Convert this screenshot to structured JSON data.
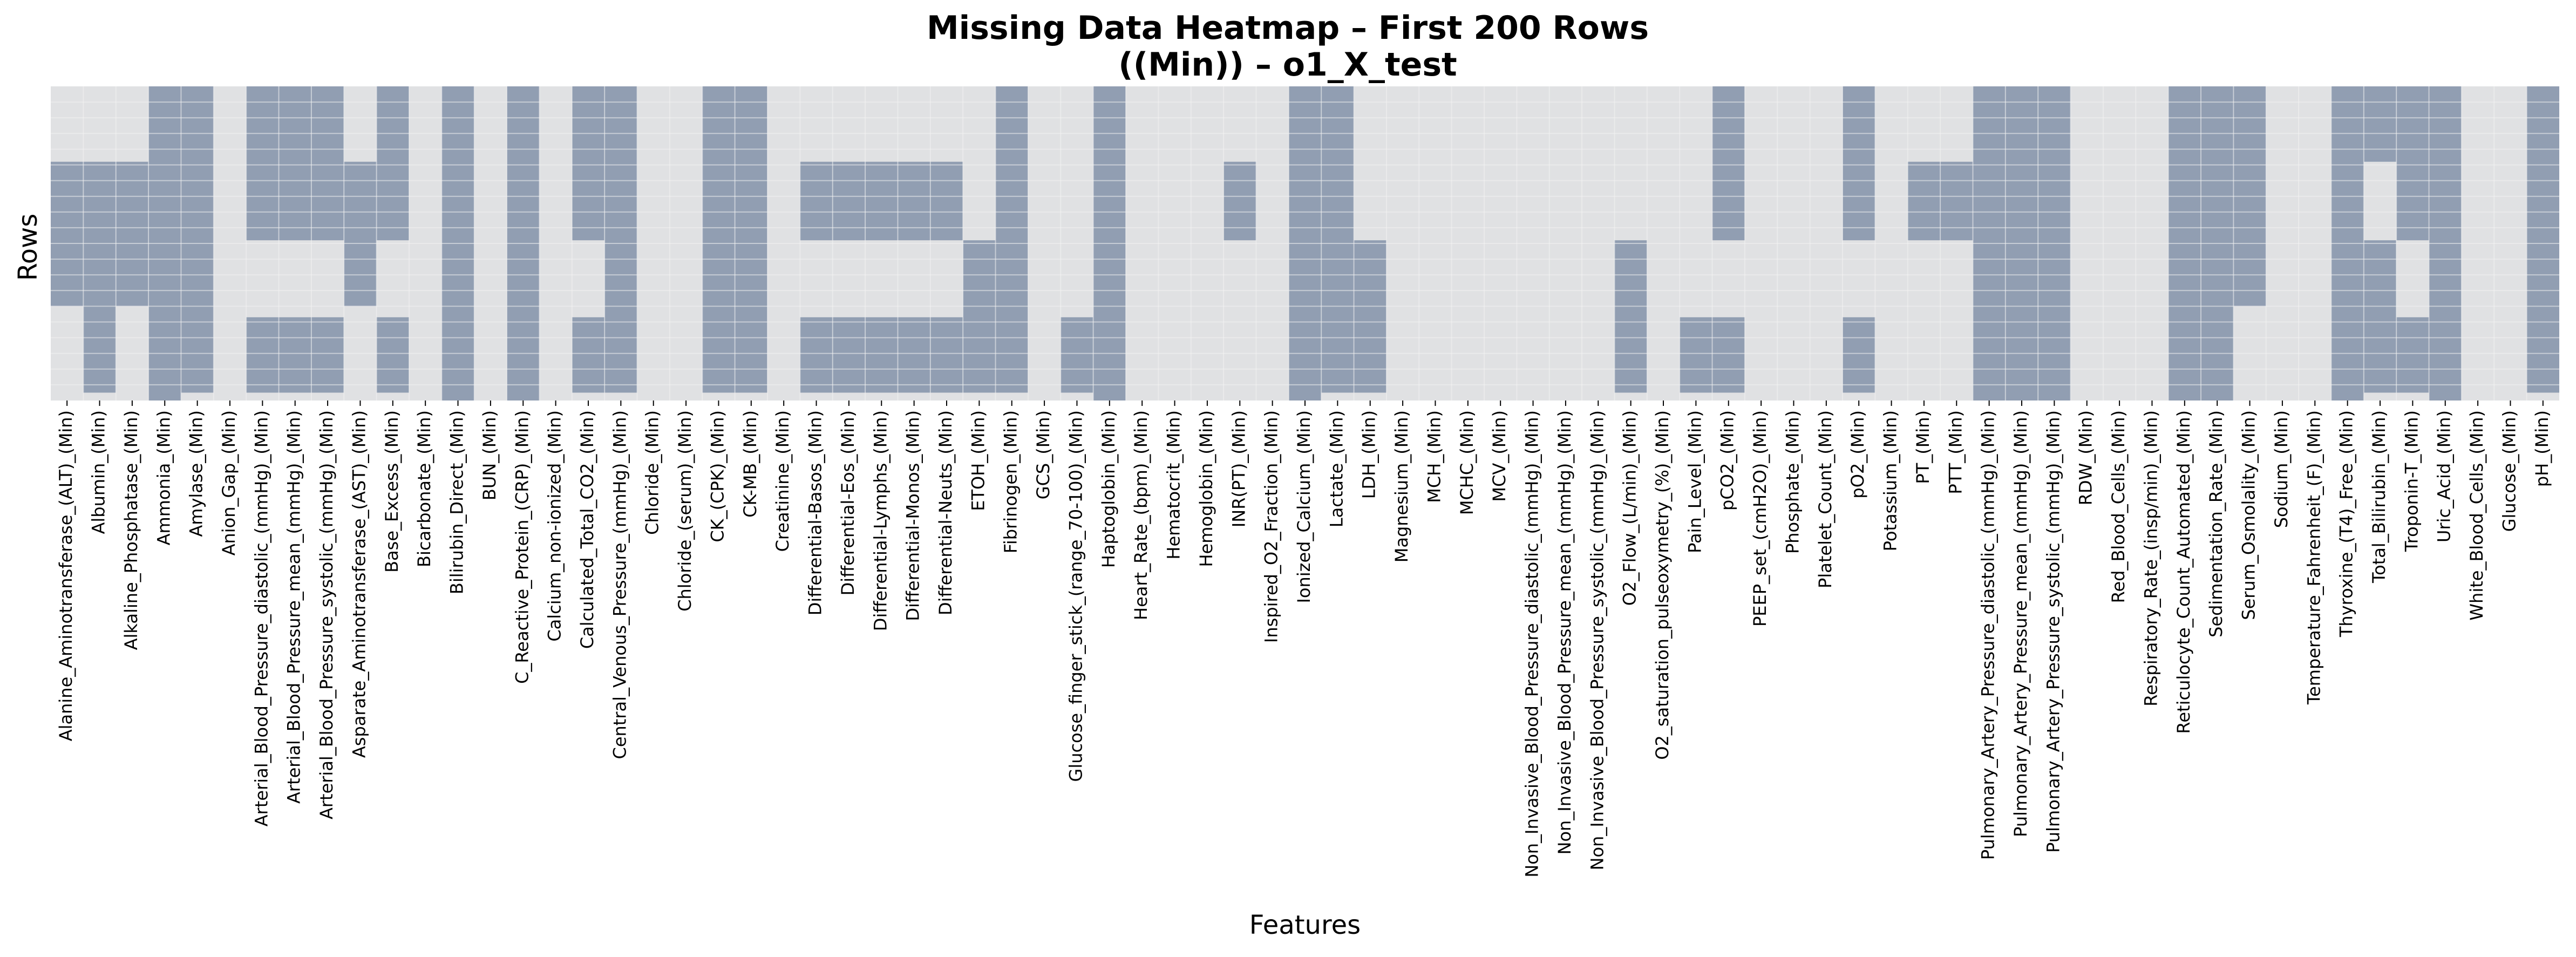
{
  "chart_data": {
    "type": "heatmap",
    "title_line1": "Missing Data Heatmap – First 200 Rows",
    "title_line2": "((Min)) – o1_X_test",
    "xlabel": "Features",
    "ylabel": "Rows",
    "n_rows": 200,
    "colors": {
      "missing": "#919eb2",
      "present": "#e0e1e3",
      "grid": "#f2f2f2"
    },
    "features": [
      {
        "name": "Alanine_Aminotransferase_(ALT)_(Min)",
        "missing_ranges": [
          [
            48,
            140
          ]
        ]
      },
      {
        "name": "Albumin_(Min)",
        "missing_ranges": [
          [
            48,
            195
          ]
        ]
      },
      {
        "name": "Alkaline_Phosphatase_(Min)",
        "missing_ranges": [
          [
            48,
            140
          ]
        ]
      },
      {
        "name": "Ammonia_(Min)",
        "missing_ranges": [
          [
            0,
            200
          ]
        ]
      },
      {
        "name": "Amylase_(Min)",
        "missing_ranges": [
          [
            0,
            195
          ]
        ]
      },
      {
        "name": "Anion_Gap_(Min)",
        "missing_ranges": []
      },
      {
        "name": "Arterial_Blood_Pressure_diastolic_(mmHg)_(Min)",
        "missing_ranges": [
          [
            0,
            98
          ],
          [
            147,
            195
          ]
        ]
      },
      {
        "name": "Arterial_Blood_Pressure_mean_(mmHg)_(Min)",
        "missing_ranges": [
          [
            0,
            98
          ],
          [
            147,
            195
          ]
        ]
      },
      {
        "name": "Arterial_Blood_Pressure_systolic_(mmHg)_(Min)",
        "missing_ranges": [
          [
            0,
            98
          ],
          [
            147,
            195
          ]
        ]
      },
      {
        "name": "Asparate_Aminotransferase_(AST)_(Min)",
        "missing_ranges": [
          [
            48,
            140
          ]
        ]
      },
      {
        "name": "Base_Excess_(Min)",
        "missing_ranges": [
          [
            0,
            98
          ],
          [
            147,
            195
          ]
        ]
      },
      {
        "name": "Bicarbonate_(Min)",
        "missing_ranges": []
      },
      {
        "name": "Bilirubin_Direct_(Min)",
        "missing_ranges": [
          [
            0,
            200
          ]
        ]
      },
      {
        "name": "BUN_(Min)",
        "missing_ranges": []
      },
      {
        "name": "C_Reactive_Protein_(CRP)_(Min)",
        "missing_ranges": [
          [
            0,
            200
          ]
        ]
      },
      {
        "name": "Calcium_non-ionized_(Min)",
        "missing_ranges": []
      },
      {
        "name": "Calculated_Total_CO2_(Min)",
        "missing_ranges": [
          [
            0,
            98
          ],
          [
            147,
            195
          ]
        ]
      },
      {
        "name": "Central_Venous_Pressure_(mmHg)_(Min)",
        "missing_ranges": [
          [
            0,
            195
          ]
        ]
      },
      {
        "name": "Chloride_(Min)",
        "missing_ranges": []
      },
      {
        "name": "Chloride_(serum)_(Min)",
        "missing_ranges": []
      },
      {
        "name": "CK_(CPK)_(Min)",
        "missing_ranges": [
          [
            0,
            195
          ]
        ]
      },
      {
        "name": "CK-MB_(Min)",
        "missing_ranges": [
          [
            0,
            195
          ]
        ]
      },
      {
        "name": "Creatinine_(Min)",
        "missing_ranges": []
      },
      {
        "name": "Differential-Basos_(Min)",
        "missing_ranges": [
          [
            48,
            98
          ],
          [
            147,
            195
          ]
        ]
      },
      {
        "name": "Differential-Eos_(Min)",
        "missing_ranges": [
          [
            48,
            98
          ],
          [
            147,
            195
          ]
        ]
      },
      {
        "name": "Differential-Lymphs_(Min)",
        "missing_ranges": [
          [
            48,
            98
          ],
          [
            147,
            195
          ]
        ]
      },
      {
        "name": "Differential-Monos_(Min)",
        "missing_ranges": [
          [
            48,
            98
          ],
          [
            147,
            195
          ]
        ]
      },
      {
        "name": "Differential-Neuts_(Min)",
        "missing_ranges": [
          [
            48,
            98
          ],
          [
            147,
            195
          ]
        ]
      },
      {
        "name": "ETOH_(Min)",
        "missing_ranges": [
          [
            98,
            195
          ]
        ]
      },
      {
        "name": "Fibrinogen_(Min)",
        "missing_ranges": [
          [
            0,
            195
          ]
        ]
      },
      {
        "name": "GCS_(Min)",
        "missing_ranges": []
      },
      {
        "name": "Glucose_finger_stick_(range_70-100)_(Min)",
        "missing_ranges": [
          [
            147,
            195
          ]
        ]
      },
      {
        "name": "Haptoglobin_(Min)",
        "missing_ranges": [
          [
            0,
            200
          ]
        ]
      },
      {
        "name": "Heart_Rate_(bpm)_(Min)",
        "missing_ranges": []
      },
      {
        "name": "Hematocrit_(Min)",
        "missing_ranges": []
      },
      {
        "name": "Hemoglobin_(Min)",
        "missing_ranges": []
      },
      {
        "name": "INR(PT)_(Min)",
        "missing_ranges": [
          [
            48,
            98
          ]
        ]
      },
      {
        "name": "Inspired_O2_Fraction_(Min)",
        "missing_ranges": []
      },
      {
        "name": "Ionized_Calcium_(Min)",
        "missing_ranges": [
          [
            0,
            200
          ]
        ]
      },
      {
        "name": "Lactate_(Min)",
        "missing_ranges": [
          [
            0,
            195
          ]
        ]
      },
      {
        "name": "LDH_(Min)",
        "missing_ranges": [
          [
            98,
            195
          ]
        ]
      },
      {
        "name": "Magnesium_(Min)",
        "missing_ranges": []
      },
      {
        "name": "MCH_(Min)",
        "missing_ranges": []
      },
      {
        "name": "MCHC_(Min)",
        "missing_ranges": []
      },
      {
        "name": "MCV_(Min)",
        "missing_ranges": []
      },
      {
        "name": "Non_Invasive_Blood_Pressure_diastolic_(mmHg)_(Min)",
        "missing_ranges": []
      },
      {
        "name": "Non_Invasive_Blood_Pressure_mean_(mmHg)_(Min)",
        "missing_ranges": []
      },
      {
        "name": "Non_Invasive_Blood_Pressure_systolic_(mmHg)_(Min)",
        "missing_ranges": []
      },
      {
        "name": "O2_Flow_(L/min)_(Min)",
        "missing_ranges": [
          [
            98,
            195
          ]
        ]
      },
      {
        "name": "O2_saturation_pulseoxymetry_(%)_(Min)",
        "missing_ranges": []
      },
      {
        "name": "Pain_Level_(Min)",
        "missing_ranges": [
          [
            147,
            195
          ]
        ]
      },
      {
        "name": "pCO2_(Min)",
        "missing_ranges": [
          [
            0,
            98
          ],
          [
            147,
            195
          ]
        ]
      },
      {
        "name": "PEEP_set_(cmH2O)_(Min)",
        "missing_ranges": []
      },
      {
        "name": "Phosphate_(Min)",
        "missing_ranges": []
      },
      {
        "name": "Platelet_Count_(Min)",
        "missing_ranges": []
      },
      {
        "name": "pO2_(Min)",
        "missing_ranges": [
          [
            0,
            98
          ],
          [
            147,
            195
          ]
        ]
      },
      {
        "name": "Potassium_(Min)",
        "missing_ranges": []
      },
      {
        "name": "PT_(Min)",
        "missing_ranges": [
          [
            48,
            98
          ]
        ]
      },
      {
        "name": "PTT_(Min)",
        "missing_ranges": [
          [
            48,
            98
          ]
        ]
      },
      {
        "name": "Pulmonary_Artery_Pressure_diastolic_(mmHg)_(Min)",
        "missing_ranges": [
          [
            0,
            200
          ]
        ]
      },
      {
        "name": "Pulmonary_Artery_Pressure_mean_(mmHg)_(Min)",
        "missing_ranges": [
          [
            0,
            200
          ]
        ]
      },
      {
        "name": "Pulmonary_Artery_Pressure_systolic_(mmHg)_(Min)",
        "missing_ranges": [
          [
            0,
            200
          ]
        ]
      },
      {
        "name": "RDW_(Min)",
        "missing_ranges": []
      },
      {
        "name": "Red_Blood_Cells_(Min)",
        "missing_ranges": []
      },
      {
        "name": "Respiratory_Rate_(insp/min)_(Min)",
        "missing_ranges": []
      },
      {
        "name": "Reticulocyte_Count_Automated_(Min)",
        "missing_ranges": [
          [
            0,
            200
          ]
        ]
      },
      {
        "name": "Sedimentation_Rate_(Min)",
        "missing_ranges": [
          [
            0,
            200
          ]
        ]
      },
      {
        "name": "Serum_Osmolality_(Min)",
        "missing_ranges": [
          [
            0,
            140
          ]
        ]
      },
      {
        "name": "Sodium_(Min)",
        "missing_ranges": []
      },
      {
        "name": "Temperature_Fahrenheit_(F)_(Min)",
        "missing_ranges": []
      },
      {
        "name": "Thyroxine_(T4)_Free_(Min)",
        "missing_ranges": [
          [
            0,
            200
          ]
        ]
      },
      {
        "name": "Total_Bilirubin_(Min)",
        "missing_ranges": [
          [
            0,
            48
          ],
          [
            98,
            195
          ]
        ]
      },
      {
        "name": "Troponin-T_(Min)",
        "missing_ranges": [
          [
            0,
            98
          ],
          [
            147,
            195
          ]
        ]
      },
      {
        "name": "Uric_Acid_(Min)",
        "missing_ranges": [
          [
            0,
            200
          ]
        ]
      },
      {
        "name": "White_Blood_Cells_(Min)",
        "missing_ranges": []
      },
      {
        "name": "Glucose_(Min)",
        "missing_ranges": []
      },
      {
        "name": "pH_(Min)",
        "missing_ranges": [
          [
            0,
            195
          ]
        ]
      }
    ]
  }
}
